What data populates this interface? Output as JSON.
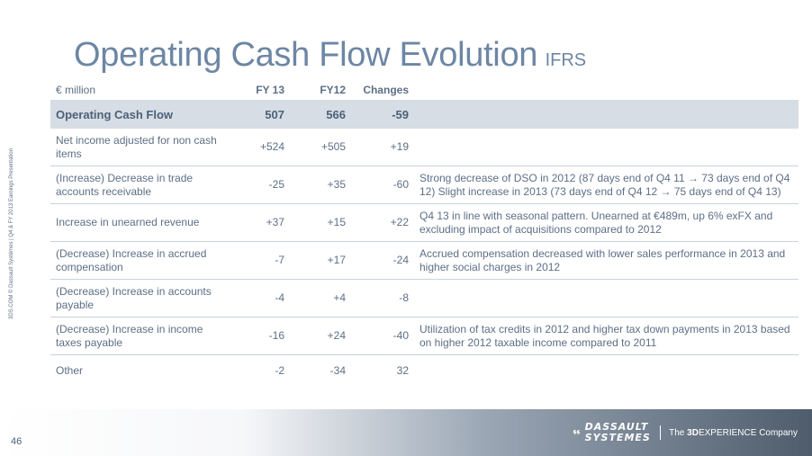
{
  "title": {
    "main": "Operating Cash Flow Evolution",
    "sub": "IFRS"
  },
  "side_note": "3DS.COM © Dassault Systèmes | Q4 & FY 2013 Earnings Presentation",
  "table": {
    "headers": {
      "label": "€ million",
      "fy13": "FY 13",
      "fy12": "FY12",
      "changes": "Changes"
    },
    "highlight": {
      "label": "Operating Cash Flow",
      "fy13": "507",
      "fy12": "566",
      "changes": "-59"
    },
    "rows": [
      {
        "label": "Net income adjusted for non cash items",
        "fy13": "+524",
        "fy12": "+505",
        "changes": "+19",
        "comment": ""
      },
      {
        "label": "(Increase) Decrease in trade accounts receivable",
        "fy13": "-25",
        "fy12": "+35",
        "changes": "-60",
        "comment": "Strong decrease of DSO in 2012 (87 days end of Q4 11 → 73 days end of Q4 12) Slight increase in 2013 (73 days end of Q4 12 → 75 days end of Q4 13)"
      },
      {
        "label": "Increase in unearned revenue",
        "fy13": "+37",
        "fy12": "+15",
        "changes": "+22",
        "comment": "Q4 13 in line with seasonal pattern. Unearned at €489m, up 6% exFX and excluding impact of acquisitions compared to 2012"
      },
      {
        "label": "(Decrease) Increase in accrued compensation",
        "fy13": "-7",
        "fy12": "+17",
        "changes": "-24",
        "comment": "Accrued compensation decreased with lower sales performance in 2013 and higher social charges in 2012"
      },
      {
        "label": "(Decrease) Increase in accounts payable",
        "fy13": "-4",
        "fy12": "+4",
        "changes": "-8",
        "comment": ""
      },
      {
        "label": "(Decrease) Increase in income taxes payable",
        "fy13": "-16",
        "fy12": "+24",
        "changes": "-40",
        "comment": "Utilization of tax credits in 2012 and higher tax down payments in 2013 based on higher 2012 taxable income compared to 2011"
      },
      {
        "label": "Other",
        "fy13": "-2",
        "fy12": "-34",
        "changes": "32",
        "comment": ""
      }
    ]
  },
  "footer": {
    "page_number": "46",
    "brand_line1": "DASSAULT",
    "brand_line2": "SYSTEMES",
    "tagline_pre": "The ",
    "tagline_bold": "3D",
    "tagline_post": "EXPERIENCE Company"
  },
  "colors": {
    "title": "#6d86a4",
    "text": "#5d6f86",
    "highlight_bg": "#d6dde5"
  }
}
